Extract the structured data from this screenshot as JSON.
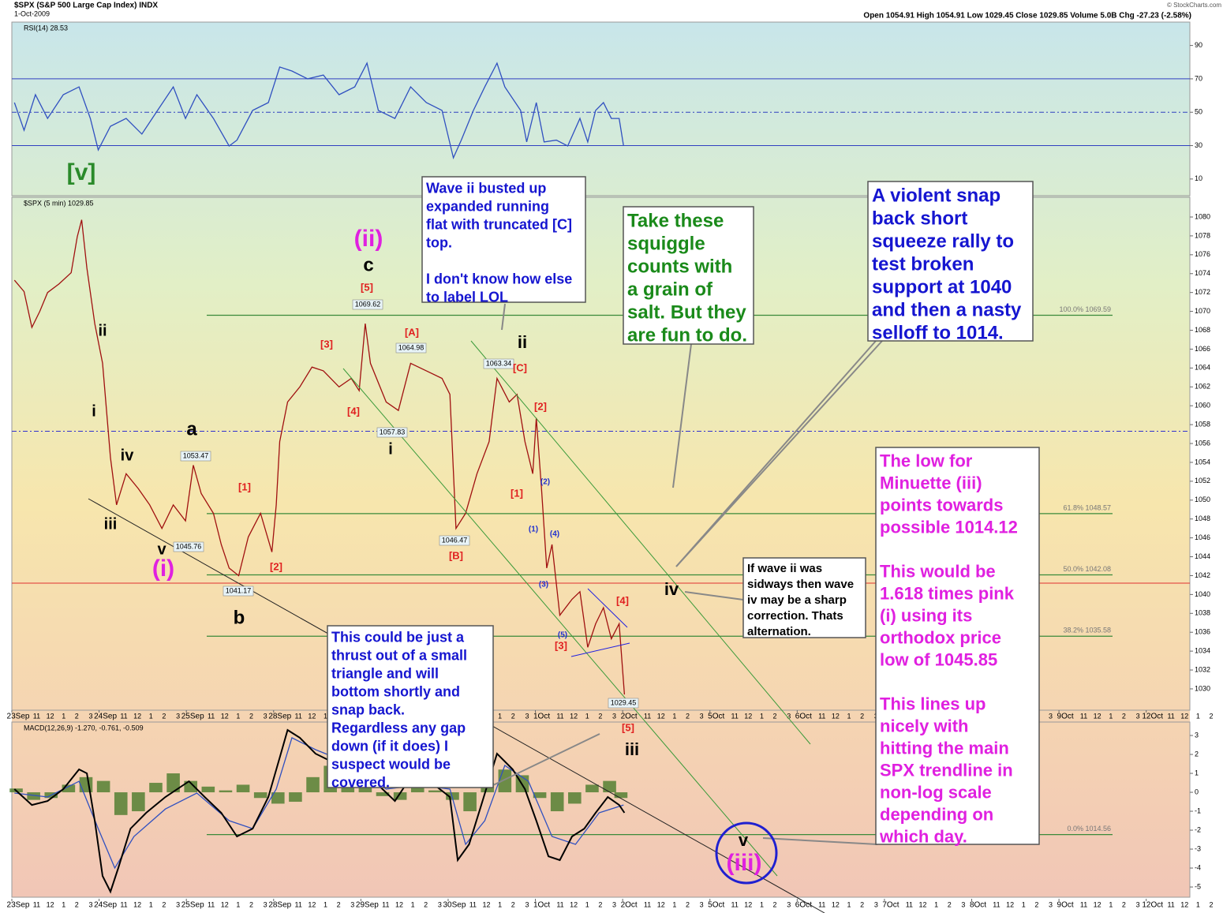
{
  "header": {
    "title": "$SPX (S&P 500 Large Cap Index) INDX",
    "date": "1-Oct-2009",
    "quote": "Open 1054.91 High 1054.91 Low 1029.45 Close 1029.85 Volume 5.0B Chg -27.23 (-2.58%)",
    "credit": "© StockCharts.com"
  },
  "chart_data": [
    {
      "type": "line",
      "title": "RSI(14) 28.53",
      "xlim": [
        0,
        13.5
      ],
      "ylim": [
        0,
        104
      ],
      "yticks": [
        10,
        30,
        50,
        70,
        90
      ],
      "hlines": [
        {
          "value": 70
        },
        {
          "value": 50,
          "dash": true
        },
        {
          "value": 30
        }
      ],
      "series": [
        {
          "color": "#3050c0",
          "x": [
            0.03,
            0.14,
            0.27,
            0.41,
            0.59,
            0.77,
            0.9,
            0.99,
            1.13,
            1.31,
            1.49,
            1.67,
            1.85,
            1.99,
            2.12,
            2.31,
            2.49,
            2.58,
            2.76,
            2.94,
            3.07,
            3.21,
            3.39,
            3.57,
            3.75,
            3.93,
            4.07,
            4.2,
            4.39,
            4.57,
            4.75,
            4.93,
            5.06,
            5.15,
            5.29,
            5.42,
            5.56,
            5.65,
            5.83,
            5.9,
            6.01,
            6.1,
            6.24,
            6.37,
            6.51,
            6.6,
            6.69,
            6.78,
            6.87,
            6.96,
            7.01
          ],
          "values": [
            55.8,
            39.2,
            60.5,
            46.3,
            60.5,
            65.2,
            46.3,
            27.4,
            41.6,
            46.3,
            36.9,
            51.1,
            65.2,
            46.3,
            60.5,
            46.3,
            29.8,
            33.3,
            51.1,
            55.8,
            77.1,
            74.7,
            70,
            72.3,
            60.5,
            65.2,
            79.4,
            51.1,
            46.3,
            65.2,
            55.8,
            51.1,
            22.7,
            33.3,
            51.1,
            65.2,
            79.4,
            65.2,
            51.1,
            32.2,
            55.8,
            32.2,
            33.3,
            29.8,
            46.3,
            32.2,
            51.1,
            55.8,
            46.3,
            46.3,
            29.8
          ]
        }
      ]
    },
    {
      "type": "line",
      "title": "$SPX (5 min) 1029.85",
      "xlim": [
        0,
        13.5
      ],
      "ylim": [
        1027.74,
        1082.09
      ],
      "yticks": [
        1030,
        1032,
        1034,
        1036,
        1038,
        1040,
        1042,
        1044,
        1046,
        1048,
        1050,
        1052,
        1054,
        1056,
        1058,
        1060,
        1062,
        1064,
        1066,
        1068,
        1070,
        1072,
        1074,
        1076,
        1078,
        1080
      ],
      "xticks": [
        {
          "value": 0,
          "label": "23Sep"
        },
        {
          "value": 1,
          "label": "24Sep"
        },
        {
          "value": 2,
          "label": "25Sep"
        },
        {
          "value": 3,
          "label": "28Sep"
        },
        {
          "value": 4,
          "label": "29Sep"
        },
        {
          "value": 5,
          "label": "30Sep"
        },
        {
          "value": 6,
          "label": "1Oct"
        },
        {
          "value": 7,
          "label": "2Oct"
        },
        {
          "value": 8,
          "label": "5Oct"
        },
        {
          "value": 9,
          "label": "6Oct"
        },
        {
          "value": 10,
          "label": "7Oct"
        },
        {
          "value": 11,
          "label": "8Oct"
        },
        {
          "value": 12,
          "label": "9Oct"
        },
        {
          "value": 13,
          "label": "12Oct"
        }
      ],
      "hour_ticks": [
        {
          "value": 0.23,
          "label": "11"
        },
        {
          "value": 0.385,
          "label": "12"
        },
        {
          "value": 0.54,
          "label": "1"
        },
        {
          "value": 0.69,
          "label": "2"
        },
        {
          "value": 0.85,
          "label": "3"
        }
      ],
      "hlines": [
        {
          "value": 1041.2,
          "color": "#e03030"
        },
        {
          "value": 1057.3,
          "color": "#3030d0",
          "dash": true
        }
      ],
      "fib_levels": [
        {
          "value": 1069.59,
          "label": "100.0% 1069.59"
        },
        {
          "value": 1048.57,
          "label": "61.8% 1048.57"
        },
        {
          "value": 1042.08,
          "label": "50.0% 1042.08"
        },
        {
          "value": 1035.58,
          "label": "38.2% 1035.58"
        },
        {
          "value": 1014.56,
          "label": "0.0% 1014.56"
        }
      ],
      "series": [
        {
          "color": "#a01010",
          "x": [
            0.03,
            0.14,
            0.23,
            0.32,
            0.41,
            0.54,
            0.68,
            0.75,
            0.8,
            0.86,
            0.95,
            1.04,
            1.13,
            1.2,
            1.31,
            1.45,
            1.58,
            1.72,
            1.85,
            1.99,
            2.08,
            2.17,
            2.31,
            2.4,
            2.49,
            2.6,
            2.71,
            2.85,
            2.98,
            3.03,
            3.07,
            3.16,
            3.3,
            3.44,
            3.57,
            3.75,
            3.89,
            3.98,
            4.05,
            4.11,
            4.29,
            4.43,
            4.57,
            4.75,
            4.93,
            5.02,
            5.09,
            5.2,
            5.33,
            5.47,
            5.56,
            5.7,
            5.79,
            5.88,
            5.97,
            6.01,
            6.07,
            6.13,
            6.19,
            6.28,
            6.42,
            6.51,
            6.6,
            6.69,
            6.78,
            6.87,
            6.96,
            7.02
          ],
          "values": [
            1073.3,
            1072.1,
            1068.3,
            1070,
            1072,
            1072.9,
            1074.1,
            1077.9,
            1079.7,
            1074.6,
            1068.7,
            1064.5,
            1054.5,
            1049.5,
            1052.8,
            1051.2,
            1049.5,
            1047,
            1049.5,
            1047.8,
            1053.7,
            1050.7,
            1048.6,
            1045.3,
            1042.8,
            1042,
            1046.1,
            1048.6,
            1044.5,
            1049.5,
            1056.2,
            1060.4,
            1062,
            1064.1,
            1063.7,
            1062,
            1062.9,
            1061.6,
            1068.7,
            1064.5,
            1060.4,
            1059.5,
            1064.5,
            1063.7,
            1062.9,
            1061.2,
            1047,
            1048.6,
            1052.8,
            1056.2,
            1062.9,
            1060.4,
            1061.2,
            1056.2,
            1052.8,
            1058.7,
            1051.2,
            1042.8,
            1045.3,
            1037.8,
            1039.5,
            1040.3,
            1034.4,
            1036.9,
            1038.6,
            1035.3,
            1036.9,
            1029.4
          ]
        }
      ],
      "price_callouts": [
        1069.62,
        1064.98,
        1063.34,
        1057.83,
        1053.47,
        1045.76,
        1041.17,
        1046.47,
        1029.45
      ],
      "annotations": [
        {
          "text": "[v]",
          "color": "#2a8a2a"
        },
        {
          "text": "(i)",
          "color": "#e020e0"
        },
        {
          "text": "(ii)",
          "color": "#e020e0"
        },
        {
          "text": "(iii)",
          "color": "#e020e0"
        },
        {
          "text": "i",
          "color": "#000"
        },
        {
          "text": "ii",
          "color": "#000"
        },
        {
          "text": "iii",
          "color": "#000"
        },
        {
          "text": "iv",
          "color": "#000"
        },
        {
          "text": "v",
          "color": "#000"
        },
        {
          "text": "a",
          "color": "#000"
        },
        {
          "text": "b",
          "color": "#000"
        },
        {
          "text": "c",
          "color": "#000"
        },
        {
          "text": "i",
          "color": "#000"
        },
        {
          "text": "ii",
          "color": "#000"
        },
        {
          "text": "iii",
          "color": "#000"
        },
        {
          "text": "iv",
          "color": "#000"
        },
        {
          "text": "v",
          "color": "#000"
        },
        {
          "text": "[1]",
          "color": "#e02020"
        },
        {
          "text": "[2]",
          "color": "#e02020"
        },
        {
          "text": "[3]",
          "color": "#e02020"
        },
        {
          "text": "[4]",
          "color": "#e02020"
        },
        {
          "text": "[5]",
          "color": "#e02020"
        },
        {
          "text": "[A]",
          "color": "#e02020"
        },
        {
          "text": "[B]",
          "color": "#e02020"
        },
        {
          "text": "[C]",
          "color": "#e02020"
        },
        {
          "text": "[2]",
          "color": "#e02020"
        },
        {
          "text": "[1]",
          "color": "#e02020"
        },
        {
          "text": "[3]",
          "color": "#e02020"
        },
        {
          "text": "[4]",
          "color": "#e02020"
        },
        {
          "text": "[5]",
          "color": "#e02020"
        },
        {
          "text": "(1)",
          "color": "#2030d0"
        },
        {
          "text": "(2)",
          "color": "#2030d0"
        },
        {
          "text": "(3)",
          "color": "#2030d0"
        },
        {
          "text": "(4)",
          "color": "#2030d0"
        },
        {
          "text": "(5)",
          "color": "#2030d0"
        }
      ],
      "notes": [
        {
          "color": "#1515d0",
          "paragraphs": [
            [
              "Wave ii busted up",
              "expanded running",
              "flat with truncated [C]",
              "top."
            ],
            [
              "I don't know how else",
              "to label LOL"
            ]
          ]
        },
        {
          "color": "#1a8a1a",
          "paragraphs": [
            [
              "Take these",
              "squiggle",
              "counts with",
              "a grain of",
              "salt. But they",
              "are fun to do."
            ]
          ]
        },
        {
          "color": "#1515d0",
          "paragraphs": [
            [
              "A violent snap",
              "back short",
              "squeeze rally to",
              "test broken",
              "support at 1040",
              "and then a nasty",
              "selloff to 1014."
            ]
          ]
        },
        {
          "color": "#e020e0",
          "paragraphs": [
            [
              "The low for",
              "Minuette (iii)",
              "points towards",
              "possible 1014.12"
            ],
            [
              "This would be",
              "1.618 times pink",
              "(i) using its",
              "orthodox price",
              "low of 1045.85"
            ],
            [
              "This lines up",
              "nicely with",
              "hitting the main",
              "SPX trendline in",
              "non-log scale",
              "depending on",
              "which day."
            ]
          ]
        },
        {
          "color": "#000000",
          "paragraphs": [
            [
              "If wave ii was",
              "sidways then wave",
              "iv may be a sharp",
              "correction. Thats",
              "alternation."
            ]
          ]
        },
        {
          "color": "#1515d0",
          "paragraphs": [
            [
              "This could be just a",
              "thrust out of a small",
              "triangle and will",
              "bottom shortly and",
              "snap back.",
              "Regardless any gap",
              "down (if it does) I",
              "suspect would be",
              "covered."
            ]
          ]
        }
      ]
    },
    {
      "type": "line",
      "title": "MACD(12,26,9) -1.270, -0.761, -0.509",
      "xlim": [
        0,
        13.5
      ],
      "ylim": [
        -5.54,
        3.71
      ],
      "yticks": [
        -5,
        -4,
        -3,
        -2,
        -1,
        0,
        1,
        2,
        3
      ],
      "series": [
        {
          "type": "bar",
          "color": "#4a7a2a",
          "x": [
            0.05,
            0.25,
            0.45,
            0.65,
            0.85,
            1.05,
            1.25,
            1.45,
            1.65,
            1.85,
            2.05,
            2.25,
            2.45,
            2.65,
            2.85,
            3.05,
            3.25,
            3.45,
            3.65,
            3.85,
            4.05,
            4.25,
            4.45,
            4.65,
            4.85,
            5.05,
            5.25,
            5.45,
            5.65,
            5.85,
            6.05,
            6.25,
            6.45,
            6.65,
            6.85,
            6.98
          ],
          "values": [
            0.2,
            -0.4,
            -0.3,
            0.4,
            0.8,
            0.6,
            -1.2,
            -1.0,
            0.5,
            1.0,
            0.6,
            0.3,
            0.1,
            0.4,
            -0.3,
            -0.6,
            -0.5,
            0.8,
            1.4,
            0.8,
            0.3,
            -0.2,
            -0.4,
            0.3,
            0.1,
            -0.4,
            -1.0,
            0.5,
            1.2,
            0.9,
            -0.3,
            -1.0,
            -0.6,
            0.4,
            0.6,
            -0.3
          ]
        },
        {
          "color": "#3050c0",
          "x": [
            0.03,
            0.41,
            0.77,
            0.99,
            1.18,
            1.4,
            1.76,
            2.12,
            2.49,
            2.76,
            3.03,
            3.21,
            3.48,
            3.93,
            4.29,
            4.66,
            5.02,
            5.2,
            5.42,
            5.65,
            5.92,
            6.19,
            6.46,
            6.73,
            7.01
          ],
          "values": [
            -0.04,
            -0.25,
            0.58,
            -1.92,
            -4,
            -2.33,
            -0.88,
            -0.04,
            -1.5,
            -1.92,
            0.17,
            2.88,
            2.25,
            1.42,
            0.17,
            0.38,
            0.17,
            -2.75,
            -1.5,
            1.42,
            0.58,
            -2.33,
            -2.75,
            -1.08,
            -0.67
          ]
        },
        {
          "color": "#000000",
          "x": [
            0.03,
            0.23,
            0.41,
            0.59,
            0.77,
            0.86,
            0.95,
            1.04,
            1.13,
            1.22,
            1.36,
            1.54,
            1.76,
            2.03,
            2.21,
            2.4,
            2.58,
            2.76,
            2.94,
            3.07,
            3.16,
            3.3,
            3.48,
            3.66,
            3.84,
            4.02,
            4.2,
            4.39,
            4.57,
            4.79,
            5.02,
            5.11,
            5.24,
            5.38,
            5.56,
            5.74,
            5.88,
            6.01,
            6.15,
            6.28,
            6.42,
            6.56,
            6.69,
            6.83,
            6.96,
            7.02
          ],
          "values": [
            0.17,
            -0.67,
            -0.46,
            0.17,
            1.21,
            1,
            -1.5,
            -4.42,
            -5.25,
            -4,
            -1.92,
            -1.08,
            -0.25,
            0.58,
            -0.25,
            -1.08,
            -2.33,
            -1.92,
            -0.25,
            1.83,
            3.29,
            2.88,
            2.04,
            1.63,
            1.21,
            1.21,
            0.38,
            -0.46,
            0.79,
            0.58,
            -0.25,
            -3.58,
            -2.75,
            -0.67,
            2.04,
            1.21,
            0.17,
            -1.5,
            -3.38,
            -3.58,
            -2.33,
            -1.92,
            -1.08,
            -0.25,
            -0.67,
            -1.08
          ]
        }
      ]
    }
  ]
}
